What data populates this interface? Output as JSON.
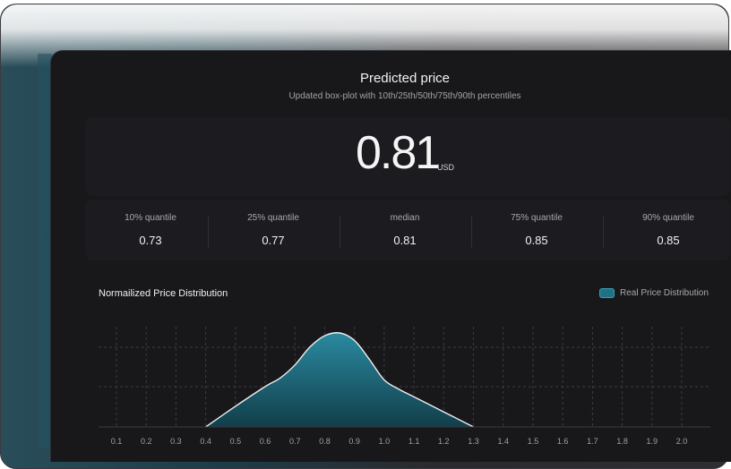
{
  "header": {
    "title": "Predicted price",
    "subtitle": "Updated box-plot with 10th/25th/50th/75th/90th percentiles"
  },
  "prediction": {
    "value": "0.81",
    "currency": "USD"
  },
  "quantiles": [
    {
      "label": "10% quantile",
      "value": "0.73"
    },
    {
      "label": "25% quantile",
      "value": "0.77"
    },
    {
      "label": "median",
      "value": "0.81"
    },
    {
      "label": "75% quantile",
      "value": "0.85"
    },
    {
      "label": "90% quantile",
      "value": "0.85"
    }
  ],
  "distribution": {
    "title": "Normailized Price Distribution",
    "legend_label": "Real Price Distribution",
    "colors": {
      "fill_top": "#2a8aa0",
      "fill_bottom": "#123e4a",
      "line": "#f0f0f0",
      "swatch": "#1f7286"
    }
  },
  "chart_data": {
    "type": "area",
    "title": "Normailized Price Distribution",
    "series": [
      {
        "name": "Real Price Distribution",
        "x": [
          0.4,
          0.5,
          0.6,
          0.65,
          0.7,
          0.75,
          0.8,
          0.85,
          0.9,
          0.95,
          1.0,
          1.05,
          1.1,
          1.2,
          1.3
        ],
        "y": [
          0.0,
          0.22,
          0.43,
          0.52,
          0.66,
          0.85,
          0.97,
          1.0,
          0.92,
          0.72,
          0.5,
          0.4,
          0.32,
          0.16,
          0.0
        ]
      }
    ],
    "x_ticks": [
      "0.1",
      "0.2",
      "0.3",
      "0.4",
      "0.5",
      "0.6",
      "0.7",
      "0.8",
      "0.9",
      "1.0",
      "1.1",
      "1.2",
      "1.3",
      "1.4",
      "1.5",
      "1.6",
      "1.7",
      "1.8",
      "1.9",
      "2.0"
    ],
    "xlim": [
      0.1,
      2.0
    ],
    "ylim": [
      0,
      1.0
    ],
    "grid": true,
    "legend": "top-right"
  }
}
